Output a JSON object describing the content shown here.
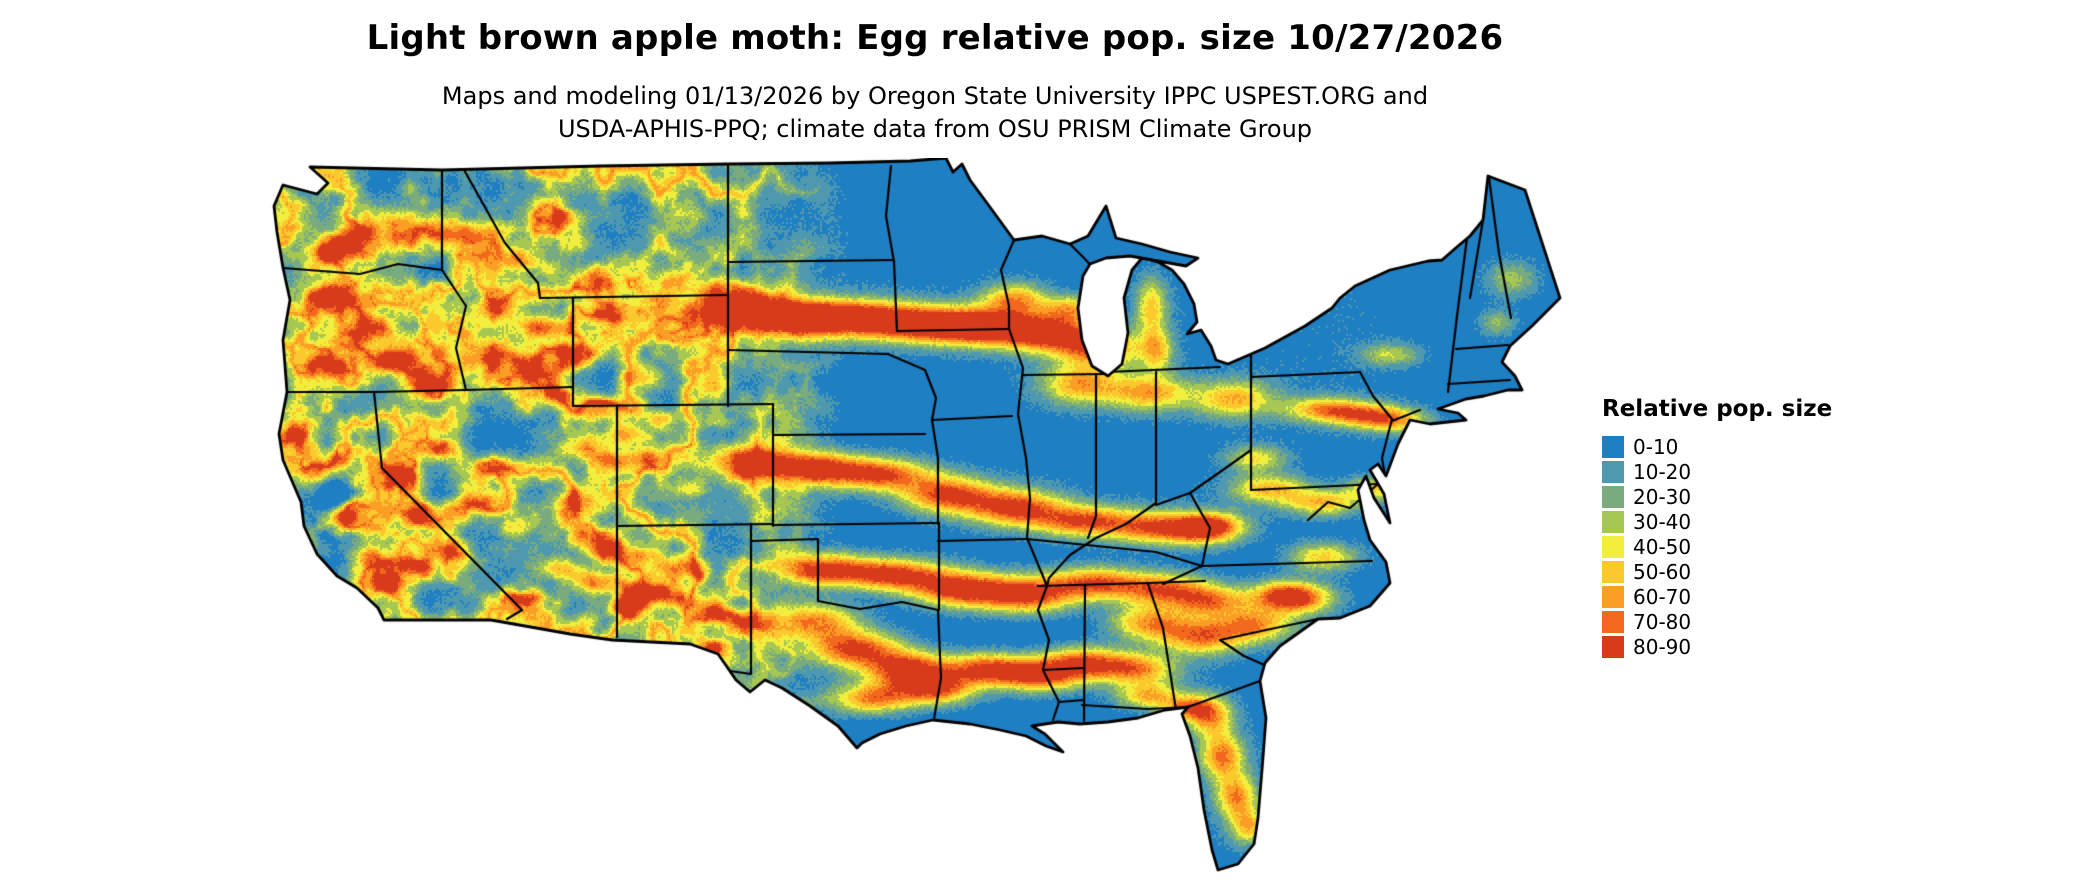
{
  "header": {
    "title": "Light brown apple moth: Egg relative pop. size 10/27/2026",
    "subtitle_lines": [
      "Maps and modeling 01/13/2026 by Oregon State University IPPC USPEST.ORG and",
      "USDA-APHIS-PPQ; climate data from OSU PRISM Climate Group"
    ]
  },
  "map": {
    "region": "Continental United States",
    "layer": "Egg relative population size raster",
    "border_color": "#000000",
    "background_color": "#ffffff"
  },
  "legend": {
    "title": "Relative pop. size",
    "entries": [
      {
        "label": "0-10",
        "color": "#1f7fc3"
      },
      {
        "label": "10-20",
        "color": "#4e99af"
      },
      {
        "label": "20-30",
        "color": "#79ab7f"
      },
      {
        "label": "30-40",
        "color": "#a6c853"
      },
      {
        "label": "40-50",
        "color": "#f2ee3d"
      },
      {
        "label": "50-60",
        "color": "#fbc92d"
      },
      {
        "label": "60-70",
        "color": "#fa9e25"
      },
      {
        "label": "70-80",
        "color": "#f2681c"
      },
      {
        "label": "80-90",
        "color": "#d83b1c"
      }
    ]
  }
}
